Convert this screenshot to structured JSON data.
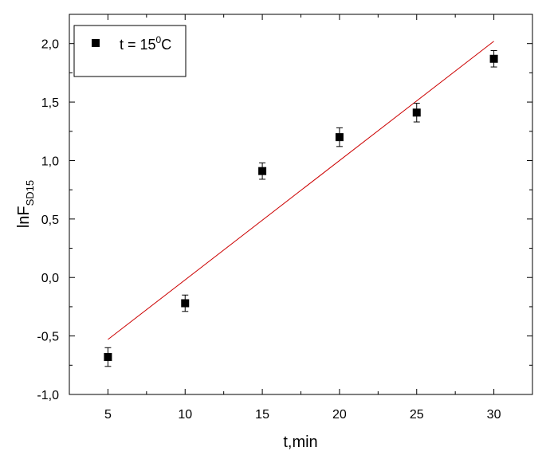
{
  "chart_data": {
    "type": "scatter",
    "title": "",
    "xlabel": "t,min",
    "ylabel": {
      "main": "lnF",
      "sub": "SD15"
    },
    "xlim": [
      2.5,
      32.5
    ],
    "ylim": [
      -1.0,
      2.25
    ],
    "xticks": [
      5,
      10,
      15,
      20,
      25,
      30
    ],
    "xtick_labels": [
      "5",
      "10",
      "15",
      "20",
      "25",
      "30"
    ],
    "yticks": [
      -1.0,
      -0.5,
      0.0,
      0.5,
      1.0,
      1.5,
      2.0
    ],
    "ytick_labels": [
      "-1,0",
      "-0,5",
      "0,0",
      "0,5",
      "1,0",
      "1,5",
      "2,0"
    ],
    "grid": false,
    "legend": {
      "position": "top-left",
      "label_prefix": "t = 15",
      "label_sup": "0",
      "label_suffix": "C"
    },
    "series": [
      {
        "name": "t = 15⁰C",
        "marker": "square",
        "color": "#000000",
        "x": [
          5,
          10,
          15,
          20,
          25,
          30
        ],
        "y": [
          -0.68,
          -0.22,
          0.91,
          1.2,
          1.41,
          1.87
        ],
        "error": [
          0.08,
          0.07,
          0.07,
          0.08,
          0.08,
          0.07
        ]
      }
    ],
    "fit_line": {
      "color": "#cc0000",
      "x": [
        5,
        30
      ],
      "y": [
        -0.53,
        2.02
      ]
    }
  }
}
